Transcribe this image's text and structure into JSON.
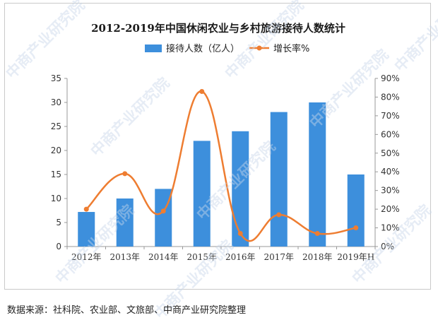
{
  "chart_data": {
    "type": "bar",
    "title": "2012-2019年中国休闲农业与乡村旅游接待人数统计",
    "categories": [
      "2012年",
      "2013年",
      "2014年",
      "2015年",
      "2016年",
      "2017年",
      "2018年",
      "2019年H"
    ],
    "series": [
      {
        "name": "接待人数（亿人）",
        "type": "bar",
        "axis": "left",
        "color": "#3d8fdc",
        "values": [
          7.2,
          10,
          12,
          22,
          24,
          28,
          30,
          15
        ]
      },
      {
        "name": "增长率%",
        "type": "line",
        "axis": "right",
        "color": "#ee7d31",
        "values": [
          20,
          39,
          19,
          83,
          7,
          17,
          7,
          10
        ]
      }
    ],
    "y_left": {
      "min": 0,
      "max": 35,
      "step": 5,
      "ticks": [
        "0",
        "5",
        "10",
        "15",
        "20",
        "25",
        "30",
        "35"
      ]
    },
    "y_right": {
      "min": 0,
      "max": 90,
      "step": 10,
      "ticks": [
        "0%",
        "10%",
        "20%",
        "30%",
        "40%",
        "50%",
        "60%",
        "70%",
        "80%",
        "90%"
      ]
    },
    "legend_position": "top-center",
    "grid": false
  },
  "source_note": "数据来源：社科院、农业部、文旅部、中商产业研究院整理",
  "watermark": "中商产业研究院"
}
